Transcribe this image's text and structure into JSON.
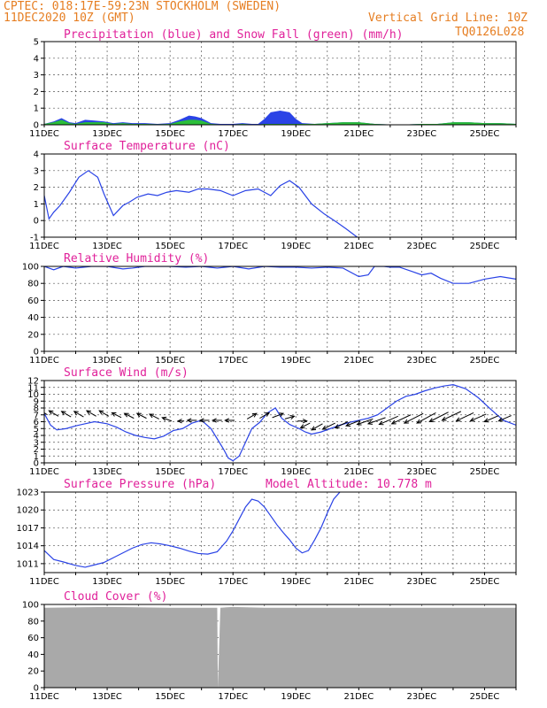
{
  "header": {
    "line1": "CPTEC:   018:17E-59:23N   STOCKHOLM (SWEDEN)",
    "line2_left": "11DEC2020 10Z (GMT)",
    "line2_right": "Vertical Grid Line: 10Z",
    "line3_right": "TQ0126L028"
  },
  "colors": {
    "header": "#e67e22",
    "panel_title": "#e0219a",
    "line": "#2a43e6",
    "precip_blue": "#2a43e6",
    "snow_green": "#2bbf3a",
    "cloud_fill": "#a9a9a9",
    "arrow": "#000000"
  },
  "x_ticks": [
    "11DEC",
    "13DEC",
    "15DEC",
    "17DEC",
    "19DEC",
    "21DEC",
    "23DEC",
    "25DEC"
  ],
  "chart_data": [
    {
      "type": "area",
      "title": "Precipitation (blue) and Snow Fall (green) (mm/h)",
      "ylim": [
        0,
        5
      ],
      "yticks": [
        "0",
        "1",
        "2",
        "3",
        "4",
        "5"
      ],
      "series": [
        {
          "name": "Precipitation",
          "color": "blue",
          "x": [
            0,
            0.3,
            0.55,
            0.8,
            1.0,
            1.3,
            1.6,
            1.9,
            2.2,
            2.5,
            2.8,
            3.2,
            3.6,
            4.0,
            4.3,
            4.6,
            4.8,
            5.0,
            5.3,
            5.6,
            6.0,
            6.3,
            6.6,
            6.8,
            7.0,
            7.2,
            7.5,
            7.8,
            8.0,
            8.2,
            8.6,
            9.0,
            9.5,
            10.0,
            10.5,
            11.0,
            11.5,
            12.0,
            12.5,
            13.0,
            13.5,
            14.0,
            14.5,
            15.0
          ],
          "values": [
            0.05,
            0.2,
            0.4,
            0.15,
            0.1,
            0.3,
            0.25,
            0.2,
            0.1,
            0.15,
            0.1,
            0.1,
            0.05,
            0.1,
            0.3,
            0.55,
            0.5,
            0.4,
            0.1,
            0.05,
            0.05,
            0.1,
            0.05,
            0.05,
            0.35,
            0.75,
            0.85,
            0.75,
            0.35,
            0.1,
            0.05,
            0.1,
            0.15,
            0.15,
            0.05,
            0.02,
            0.02,
            0.05,
            0.05,
            0.15,
            0.15,
            0.1,
            0.1,
            0.05
          ]
        },
        {
          "name": "Snow Fall",
          "color": "green",
          "x": [
            0,
            0.3,
            0.55,
            0.8,
            1.0,
            1.3,
            1.6,
            1.9,
            2.2,
            2.5,
            2.8,
            3.2,
            3.6,
            4.0,
            4.3,
            4.6,
            4.8,
            5.0,
            5.3,
            5.6,
            6.0,
            6.3,
            6.6,
            6.8,
            7.0,
            7.2,
            7.5,
            7.8,
            8.0,
            8.2,
            8.6,
            9.0,
            9.5,
            10.0,
            10.5,
            11.0,
            11.5,
            12.0,
            12.5,
            13.0,
            13.5,
            14.0,
            14.5,
            15.0
          ],
          "values": [
            0.05,
            0.15,
            0.3,
            0.1,
            0.05,
            0.15,
            0.15,
            0.15,
            0.05,
            0.1,
            0.05,
            0.05,
            0.03,
            0.05,
            0.2,
            0.3,
            0.3,
            0.25,
            0.05,
            0.02,
            0.02,
            0.05,
            0.02,
            0.02,
            0.05,
            0.05,
            0.05,
            0.05,
            0.05,
            0.05,
            0.05,
            0.1,
            0.15,
            0.15,
            0.05,
            0.02,
            0.02,
            0.05,
            0.05,
            0.15,
            0.15,
            0.1,
            0.1,
            0.05
          ]
        }
      ]
    },
    {
      "type": "line",
      "title": "Surface Temperature (nC)",
      "ylim": [
        -1,
        4
      ],
      "yticks": [
        "-1",
        "0",
        "1",
        "2",
        "3",
        "4"
      ],
      "series": [
        {
          "name": "",
          "x": [
            0,
            0.15,
            0.3,
            0.5,
            0.8,
            1.1,
            1.4,
            1.7,
            1.9,
            2.2,
            2.5,
            2.7,
            2.95,
            3.3,
            3.6,
            3.9,
            4.2,
            4.6,
            4.9,
            5.2,
            5.6,
            6.0,
            6.4,
            6.8,
            7.2,
            7.5,
            7.8,
            8.1,
            8.5,
            8.9,
            9.3,
            9.6,
            9.95
          ],
          "values": [
            1.5,
            0.1,
            0.5,
            0.9,
            1.7,
            2.6,
            3.0,
            2.6,
            1.6,
            0.3,
            0.9,
            1.1,
            1.4,
            1.6,
            1.5,
            1.7,
            1.8,
            1.7,
            1.9,
            1.9,
            1.8,
            1.5,
            1.8,
            1.9,
            1.5,
            2.1,
            2.4,
            2.0,
            1.0,
            0.4,
            -0.1,
            -0.5,
            -1.0
          ]
        }
      ]
    },
    {
      "type": "line",
      "title": "Relative Humidity (%)",
      "ylim": [
        0,
        100
      ],
      "yticks": [
        "0",
        "20",
        "40",
        "60",
        "80",
        "100"
      ],
      "series": [
        {
          "name": "",
          "x": [
            0,
            0.3,
            0.6,
            1.0,
            1.5,
            2.0,
            2.5,
            2.8,
            3.2,
            3.6,
            4.0,
            4.5,
            5.0,
            5.5,
            6.0,
            6.5,
            7.0,
            7.5,
            8.0,
            8.5,
            9.0,
            9.5,
            10.0,
            10.3,
            10.5,
            10.8,
            11.0,
            11.3,
            11.7,
            12.0,
            12.3,
            12.6,
            13.0,
            13.5,
            14.0,
            14.5,
            15.0
          ],
          "values": [
            100,
            96,
            100,
            98,
            100,
            100,
            97,
            98,
            100,
            100,
            100,
            99,
            100,
            98,
            100,
            97,
            100,
            99,
            99,
            98,
            99,
            98,
            88,
            90,
            100,
            100,
            99,
            99,
            94,
            90,
            92,
            86,
            80,
            80,
            85,
            88,
            85
          ]
        }
      ]
    },
    {
      "type": "line",
      "title": "Surface Wind (m/s)",
      "ylim": [
        0,
        12
      ],
      "yticks": [
        "0",
        "1",
        "2",
        "3",
        "4",
        "5",
        "6",
        "7",
        "8",
        "9",
        "10",
        "11",
        "12"
      ],
      "series": [
        {
          "name": "",
          "x": [
            0,
            0.2,
            0.4,
            0.7,
            1.0,
            1.3,
            1.6,
            2.0,
            2.3,
            2.6,
            2.9,
            3.2,
            3.5,
            3.8,
            4.1,
            4.4,
            4.7,
            5.0,
            5.3,
            5.5,
            5.7,
            5.85,
            6.0,
            6.2,
            6.4,
            6.6,
            6.85,
            7.1,
            7.35,
            7.55,
            7.8,
            8.1,
            8.3,
            8.5,
            8.8,
            9.1,
            9.4,
            9.7,
            10.0,
            10.3,
            10.6,
            10.9,
            11.2,
            11.5,
            11.8,
            12.1,
            12.4,
            12.7,
            13.0,
            13.4,
            13.8,
            14.2,
            14.6,
            15.0
          ],
          "values": [
            7.2,
            5.5,
            4.8,
            5.0,
            5.4,
            5.7,
            6.0,
            5.7,
            5.2,
            4.5,
            4.0,
            3.7,
            3.5,
            3.9,
            4.7,
            5.0,
            5.8,
            6.2,
            5.0,
            3.5,
            2.0,
            0.7,
            0.3,
            1.0,
            3.0,
            5.0,
            5.9,
            7.3,
            8.0,
            6.5,
            5.6,
            5.0,
            4.5,
            4.2,
            4.5,
            5.0,
            5.5,
            5.9,
            6.2,
            6.5,
            7.0,
            8.0,
            9.0,
            9.7,
            10.0,
            10.5,
            10.9,
            11.2,
            11.4,
            10.8,
            9.5,
            7.8,
            6.2,
            5.5
          ]
        }
      ],
      "arrows": {
        "x": [
          0.1,
          0.45,
          0.85,
          1.25,
          1.65,
          2.05,
          2.45,
          2.85,
          3.25,
          3.65,
          4.05,
          4.45,
          4.85,
          5.25,
          5.65,
          6.05,
          6.45,
          6.85,
          7.25,
          7.65,
          8.05,
          8.45,
          8.85,
          9.25,
          9.65,
          10.05,
          10.45,
          10.85,
          11.25,
          11.65,
          12.05,
          12.45,
          12.85,
          13.25,
          13.65,
          14.05,
          14.45,
          14.85
        ],
        "y": [
          7.0,
          6.8,
          6.7,
          6.7,
          6.8,
          6.8,
          6.6,
          6.5,
          6.5,
          6.4,
          6.1,
          6.1,
          6.2,
          6.2,
          6.2,
          6.2,
          6.4,
          6.5,
          6.6,
          6.4,
          6.1,
          5.8,
          5.7,
          5.8,
          6.0,
          6.2,
          6.4,
          6.6,
          6.8,
          7.0,
          7.2,
          7.3,
          7.4,
          7.5,
          7.3,
          7.1,
          6.9,
          6.9
        ],
        "dx": [
          -0.3,
          -0.3,
          -0.3,
          -0.3,
          -0.3,
          -0.3,
          -0.3,
          -0.3,
          -0.3,
          -0.3,
          -0.3,
          -0.2,
          -0.3,
          -0.3,
          -0.3,
          -0.3,
          0.3,
          0.3,
          0.35,
          0.3,
          0.3,
          -0.3,
          -0.35,
          -0.4,
          -0.4,
          -0.45,
          -0.5,
          -0.55,
          -0.6,
          -0.6,
          -0.6,
          -0.6,
          -0.6,
          -0.6,
          -0.55,
          -0.5,
          -0.45,
          -0.4
        ],
        "dy": [
          0.9,
          0.8,
          0.8,
          0.8,
          0.8,
          0.8,
          0.7,
          0.7,
          0.7,
          0.7,
          0.5,
          0.0,
          0.0,
          0.0,
          0.0,
          0.0,
          0.8,
          0.8,
          0.6,
          0.4,
          0.0,
          -0.7,
          -0.9,
          -0.9,
          -0.9,
          -0.8,
          -0.8,
          -0.9,
          -1.2,
          -1.3,
          -1.4,
          -1.5,
          -1.4,
          -1.3,
          -1.2,
          -1.0,
          -0.9,
          -0.8
        ]
      }
    },
    {
      "type": "line",
      "title": "Surface Pressure (hPa)",
      "annotation": "Model Altitude: 10.778 m",
      "ylim": [
        1009.5,
        1023
      ],
      "yticks": [
        "1011",
        "1014",
        "1017",
        "1020",
        "1023"
      ],
      "series": [
        {
          "name": "",
          "x": [
            0,
            0.3,
            0.6,
            1.0,
            1.3,
            1.6,
            1.9,
            2.2,
            2.5,
            2.8,
            3.1,
            3.4,
            3.7,
            4.0,
            4.3,
            4.6,
            4.9,
            5.2,
            5.5,
            5.8,
            6.0,
            6.2,
            6.4,
            6.6,
            6.8,
            7.0,
            7.2,
            7.4,
            7.6,
            7.8,
            8.0,
            8.2,
            8.4,
            8.6,
            8.8,
            9.0,
            9.2,
            9.4
          ],
          "values": [
            1013.2,
            1011.7,
            1011.3,
            1010.7,
            1010.4,
            1010.8,
            1011.2,
            1012.0,
            1012.8,
            1013.6,
            1014.2,
            1014.5,
            1014.3,
            1014.0,
            1013.6,
            1013.1,
            1012.7,
            1012.6,
            1013.0,
            1014.8,
            1016.5,
            1018.5,
            1020.5,
            1021.8,
            1021.5,
            1020.5,
            1019.0,
            1017.5,
            1016.2,
            1015.0,
            1013.6,
            1012.8,
            1013.2,
            1015.0,
            1017.0,
            1019.5,
            1021.8,
            1023.0
          ]
        }
      ]
    },
    {
      "type": "area",
      "title": "Cloud Cover (%)",
      "ylim": [
        0,
        100
      ],
      "yticks": [
        "0",
        "20",
        "40",
        "60",
        "80",
        "100"
      ],
      "series": [
        {
          "name": "",
          "x": [
            0,
            2.0,
            4.0,
            5.45,
            5.5,
            5.52,
            5.6,
            6.0,
            7.0,
            8.0,
            9.0,
            10.0,
            11.0,
            12.0,
            13.0,
            14.0,
            15.0
          ],
          "values": [
            96,
            97,
            96,
            96,
            96,
            0,
            96,
            97,
            96,
            96,
            96,
            96,
            96,
            96,
            96,
            96,
            96
          ]
        }
      ]
    }
  ]
}
